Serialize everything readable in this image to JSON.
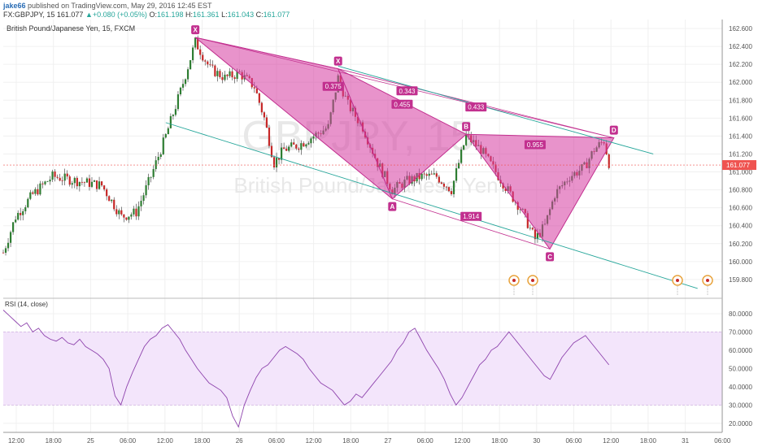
{
  "header": {
    "author": "jake66",
    "published_text": "published on TradingView.com, May 29, 2016 12:45 EST",
    "symbol": "FX:GBPJPY, 15",
    "last_price": "161.077",
    "change_arrow": "▲",
    "change": "+0.080 (+0.05%)",
    "open_label": "O:",
    "open": "161.198",
    "high_label": "H:",
    "high": "161.361",
    "low_label": "L:",
    "low": "161.043",
    "close_label": "C:",
    "close": "161.077"
  },
  "chart_data": {
    "type": "candlestick",
    "title": "British Pound/Japanese Yen, 15, FXCM",
    "watermark_symbol": "GBPJPY, 15",
    "watermark_name": "British Pound/Japanese Yen",
    "last_price_label": "161.077",
    "last_price": 161.077,
    "ylim": [
      159.6,
      162.7
    ],
    "y_ticks": [
      "159.800",
      "160.000",
      "160.200",
      "160.400",
      "160.600",
      "160.800",
      "161.000",
      "161.200",
      "161.400",
      "161.600",
      "161.800",
      "162.000",
      "162.200",
      "162.400",
      "162.600"
    ],
    "x_ticks": [
      "12:00",
      "18:00",
      "25",
      "06:00",
      "12:00",
      "18:00",
      "26",
      "06:00",
      "12:00",
      "18:00",
      "27",
      "06:00",
      "12:00",
      "18:00",
      "30",
      "06:00",
      "12:00",
      "18:00",
      "31",
      "06:00"
    ],
    "price_path": [
      {
        "x": 0,
        "y": 160.1
      },
      {
        "x": 5,
        "y": 160.5
      },
      {
        "x": 12,
        "y": 160.75
      },
      {
        "x": 20,
        "y": 160.95
      },
      {
        "x": 30,
        "y": 160.9
      },
      {
        "x": 40,
        "y": 160.85
      },
      {
        "x": 48,
        "y": 160.5
      },
      {
        "x": 54,
        "y": 160.55
      },
      {
        "x": 60,
        "y": 160.95
      },
      {
        "x": 66,
        "y": 161.4
      },
      {
        "x": 72,
        "y": 161.9
      },
      {
        "x": 78,
        "y": 162.45
      },
      {
        "x": 84,
        "y": 162.15
      },
      {
        "x": 90,
        "y": 162.05
      },
      {
        "x": 96,
        "y": 162.1
      },
      {
        "x": 102,
        "y": 161.95
      },
      {
        "x": 106,
        "y": 161.6
      },
      {
        "x": 110,
        "y": 161.1
      },
      {
        "x": 114,
        "y": 161.25
      },
      {
        "x": 120,
        "y": 161.3
      },
      {
        "x": 126,
        "y": 161.4
      },
      {
        "x": 132,
        "y": 161.5
      },
      {
        "x": 136,
        "y": 162.05
      },
      {
        "x": 140,
        "y": 161.75
      },
      {
        "x": 146,
        "y": 161.5
      },
      {
        "x": 152,
        "y": 161.1
      },
      {
        "x": 158,
        "y": 160.8
      },
      {
        "x": 164,
        "y": 160.9
      },
      {
        "x": 170,
        "y": 160.95
      },
      {
        "x": 176,
        "y": 160.95
      },
      {
        "x": 182,
        "y": 160.8
      },
      {
        "x": 188,
        "y": 161.4
      },
      {
        "x": 194,
        "y": 161.25
      },
      {
        "x": 200,
        "y": 161.0
      },
      {
        "x": 206,
        "y": 160.75
      },
      {
        "x": 210,
        "y": 160.6
      },
      {
        "x": 216,
        "y": 160.25
      },
      {
        "x": 220,
        "y": 160.4
      },
      {
        "x": 224,
        "y": 160.75
      },
      {
        "x": 230,
        "y": 160.95
      },
      {
        "x": 236,
        "y": 161.05
      },
      {
        "x": 240,
        "y": 161.25
      },
      {
        "x": 244,
        "y": 161.35
      },
      {
        "x": 246,
        "y": 161.1
      }
    ],
    "harmonic_points": [
      {
        "label": "X",
        "x": 78,
        "y": 162.5
      },
      {
        "label": "X",
        "x": 136,
        "y": 162.15
      },
      {
        "label": "A",
        "x": 158,
        "y": 160.7
      },
      {
        "label": "B",
        "x": 188,
        "y": 161.42
      },
      {
        "label": "C",
        "x": 222,
        "y": 160.14
      },
      {
        "label": "D",
        "x": 248,
        "y": 161.38
      }
    ],
    "ratio_labels": [
      {
        "text": "0.375",
        "x": 134,
        "y": 161.95
      },
      {
        "text": "0.455",
        "x": 162,
        "y": 161.75
      },
      {
        "text": "0.343",
        "x": 164,
        "y": 161.9
      },
      {
        "text": "0.433",
        "x": 192,
        "y": 161.72
      },
      {
        "text": "0.955",
        "x": 216,
        "y": 161.3
      },
      {
        "text": "1.914",
        "x": 190,
        "y": 160.5
      }
    ],
    "channel_lines": [
      {
        "x1": 66,
        "y1": 161.55,
        "x2": 282,
        "y2": 159.7
      },
      {
        "x1": 136,
        "y1": 162.18,
        "x2": 264,
        "y2": 161.2
      }
    ],
    "rsi": {
      "label": "RSI (14, close)",
      "ylim": [
        15,
        88
      ],
      "y_ticks": [
        "20.0000",
        "30.0000",
        "40.0000",
        "50.0000",
        "60.0000",
        "70.0000",
        "80.0000"
      ],
      "band": [
        30,
        70
      ],
      "values": [
        82,
        79,
        76,
        73,
        75,
        70,
        72,
        68,
        66,
        65,
        67,
        64,
        63,
        66,
        62,
        60,
        58,
        55,
        50,
        35,
        30,
        40,
        48,
        55,
        62,
        66,
        68,
        72,
        74,
        70,
        66,
        60,
        55,
        50,
        46,
        42,
        40,
        38,
        34,
        24,
        18,
        30,
        38,
        45,
        50,
        52,
        56,
        60,
        62,
        60,
        58,
        55,
        50,
        46,
        42,
        40,
        38,
        34,
        30,
        32,
        36,
        34,
        38,
        42,
        46,
        50,
        54,
        60,
        64,
        70,
        72,
        66,
        60,
        55,
        50,
        44,
        36,
        30,
        34,
        40,
        46,
        52,
        55,
        60,
        62,
        66,
        70,
        66,
        62,
        58,
        54,
        50,
        46,
        44,
        50,
        56,
        60,
        64,
        66,
        68,
        64,
        60,
        56,
        52
      ]
    }
  }
}
